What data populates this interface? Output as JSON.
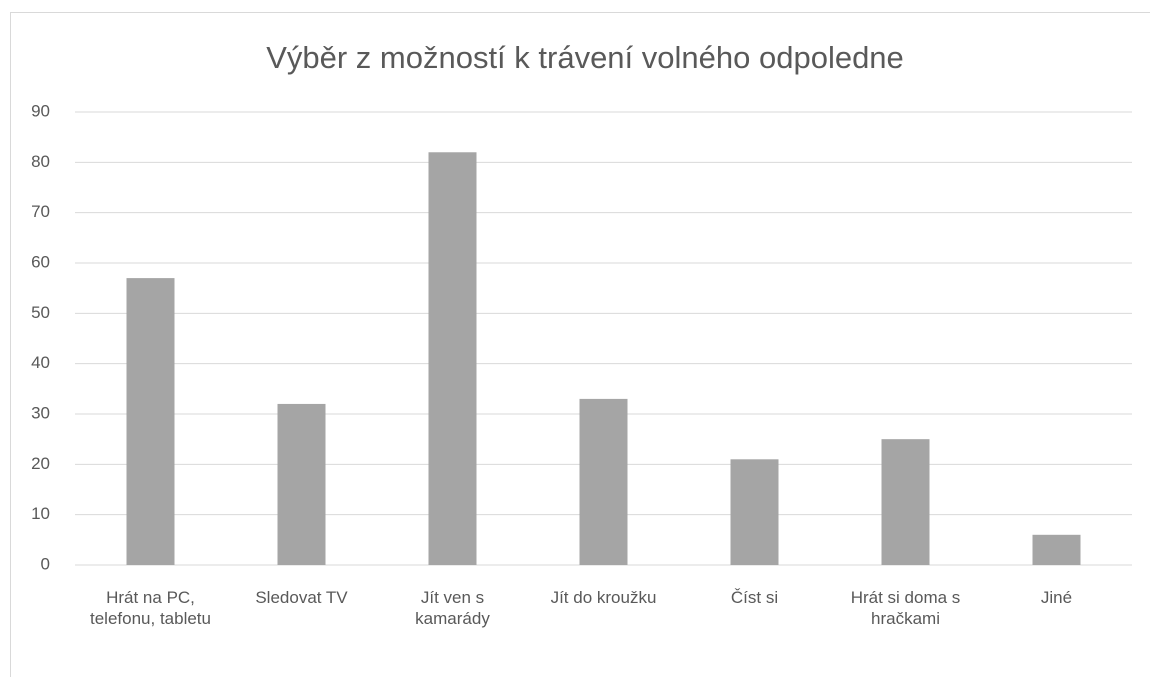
{
  "chart_data": {
    "type": "bar",
    "title": "Výběr z možností k trávení volného odpoledne",
    "categories": [
      "Hrát na PC, telefonu, tabletu",
      "Sledovat TV",
      "Jít ven s kamarády",
      "Jít do kroužku",
      "Číst si",
      "Hrát si doma s hračkami",
      "Jiné"
    ],
    "values": [
      57,
      32,
      82,
      33,
      21,
      25,
      6
    ],
    "color": "#a5a5a5",
    "ylim": [
      0,
      90
    ],
    "yticks": [
      0,
      10,
      20,
      30,
      40,
      50,
      60,
      70,
      80,
      90
    ],
    "grid": true
  }
}
